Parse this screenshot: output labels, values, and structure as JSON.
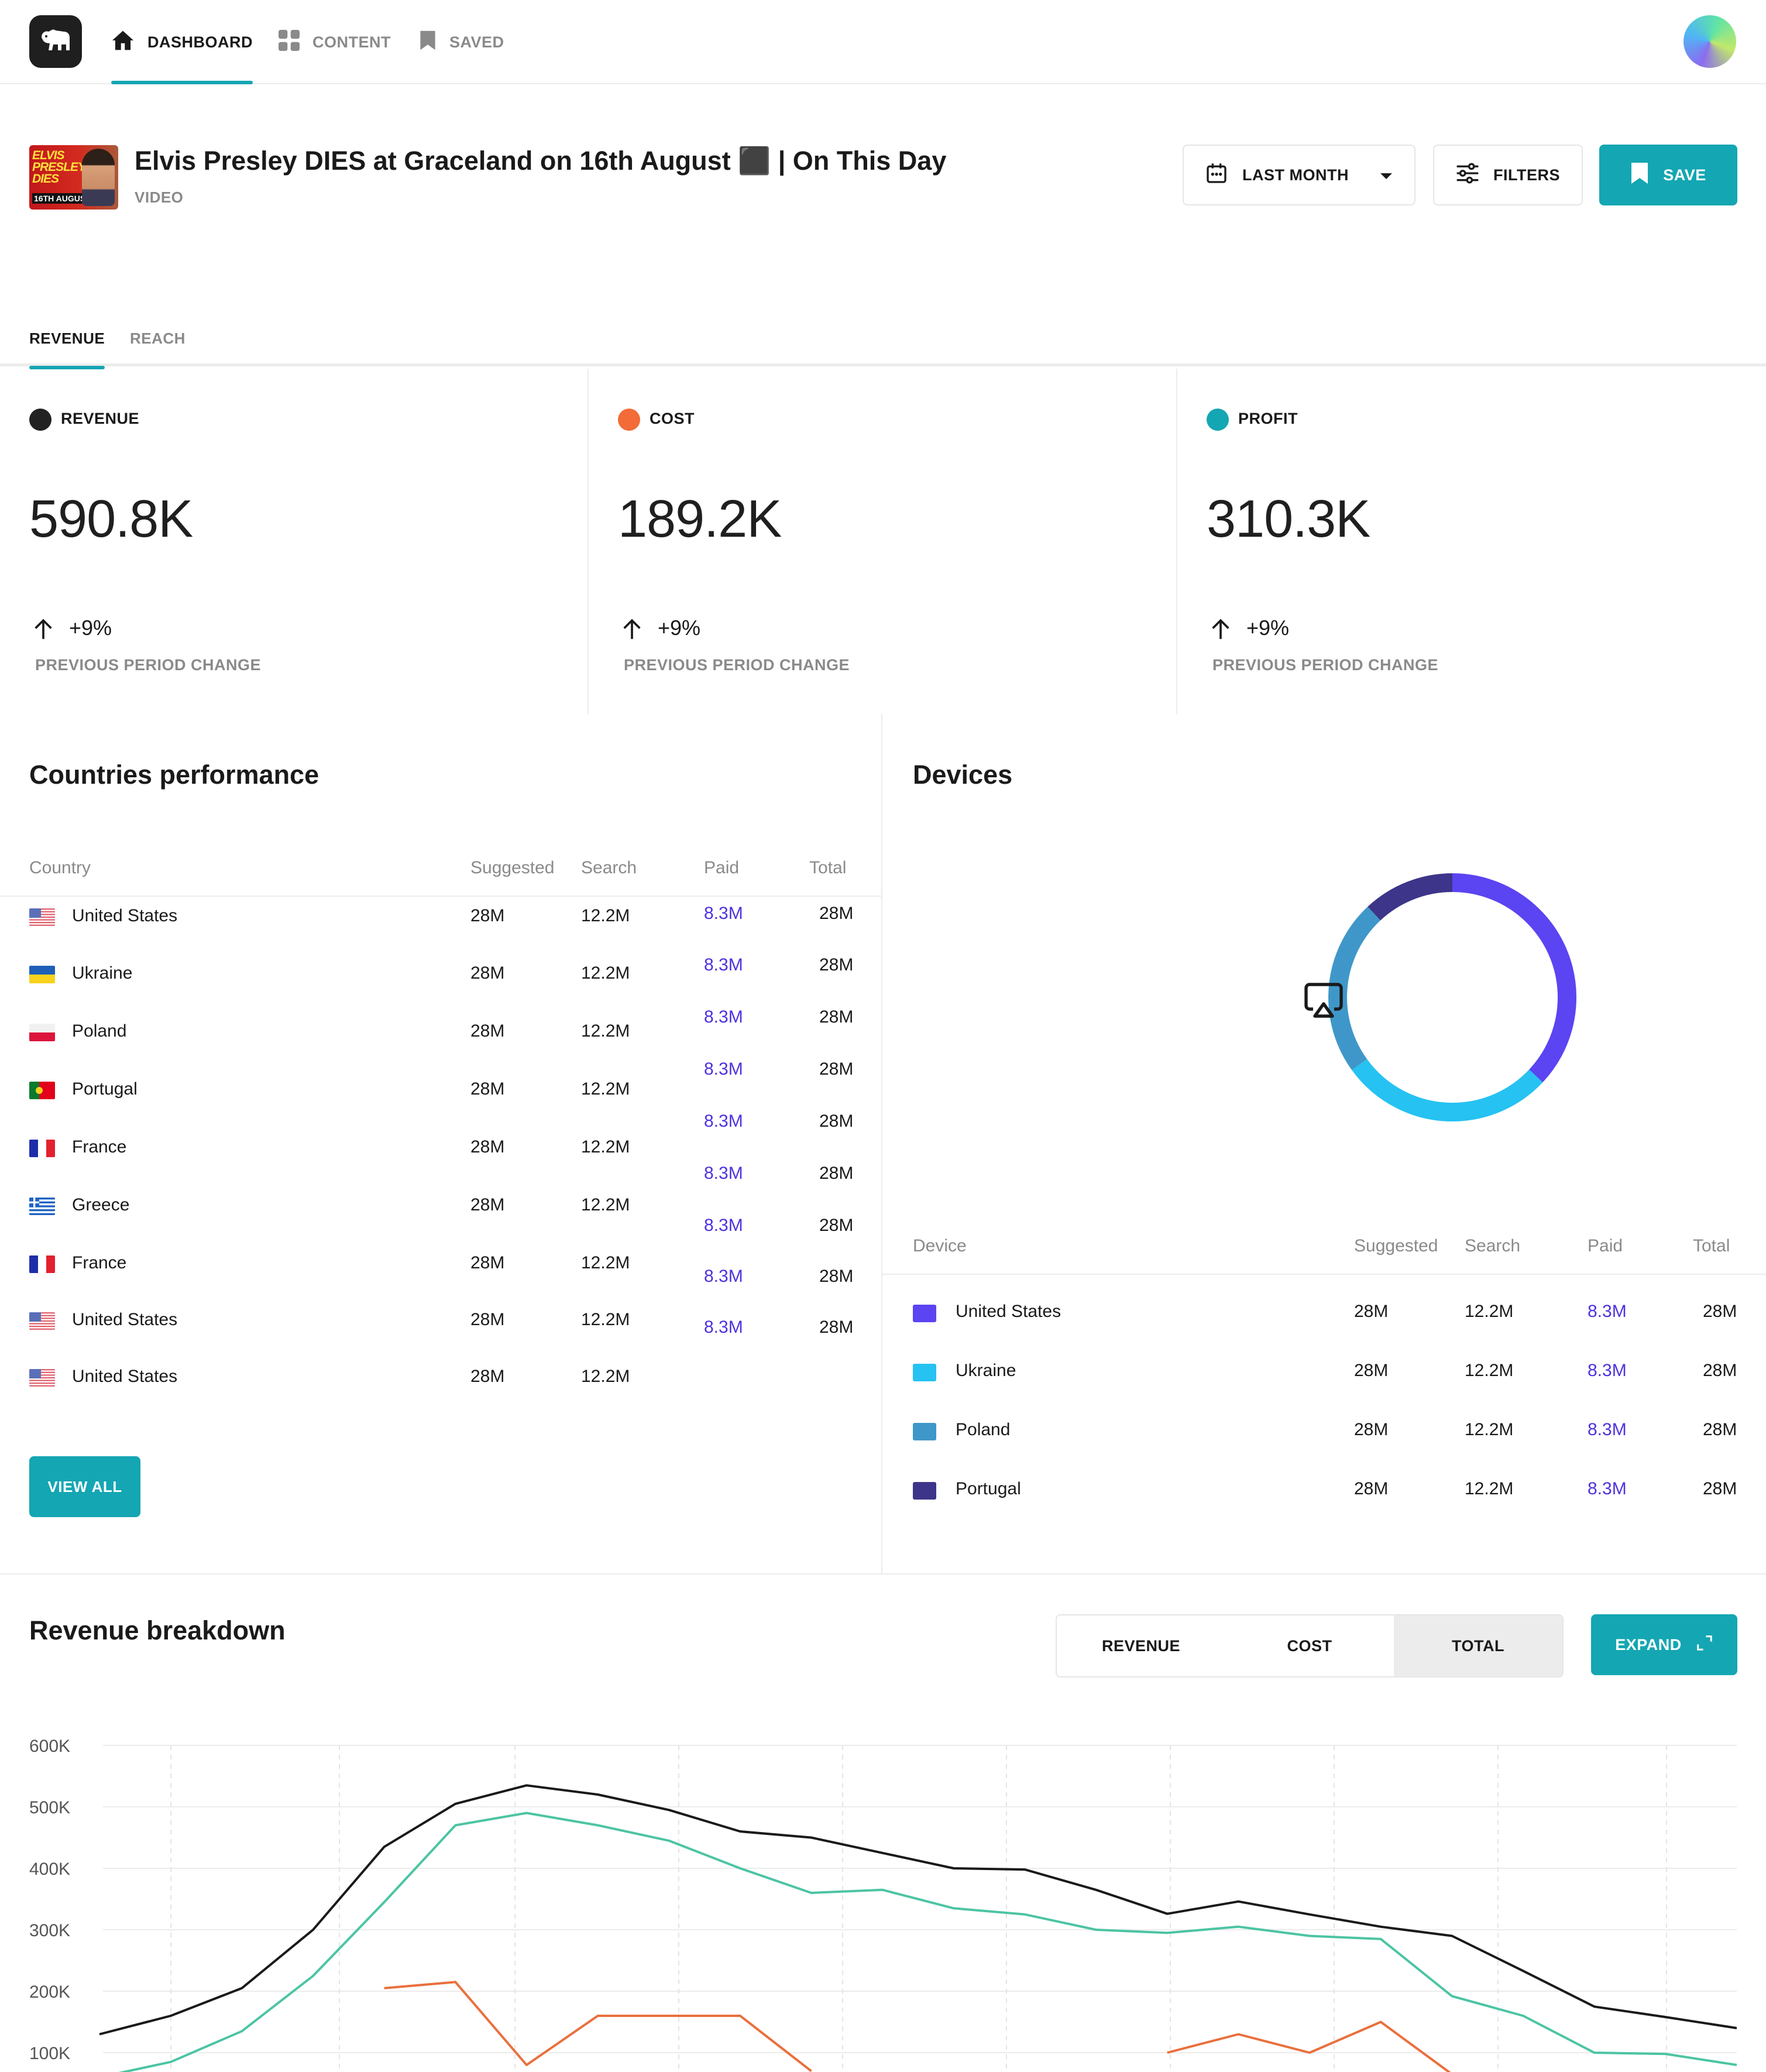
{
  "nav": {
    "items": [
      {
        "label": "DASHBOARD",
        "icon": "home-icon",
        "active": true
      },
      {
        "label": "CONTENT",
        "icon": "grid-icon",
        "active": false
      },
      {
        "label": "SAVED",
        "icon": "bookmark-icon",
        "active": false
      }
    ]
  },
  "header": {
    "thumbnail_text": "ELVIS PRESLEY DIES",
    "thumbnail_badge": "16TH AUGUST",
    "title": "Elvis Presley DIES at Graceland on 16th August ⬛ | On This Day",
    "subtitle": "VIDEO",
    "period_label": "LAST MONTH",
    "filters_label": "FILTERS",
    "save_label": "SAVE",
    "accent_color": "#14a6b3"
  },
  "tabs": [
    {
      "label": "REVENUE",
      "active": true
    },
    {
      "label": "REACH",
      "active": false
    }
  ],
  "stats": [
    {
      "label": "REVENUE",
      "color": "#222222",
      "value": "590.8K",
      "change": "+9%",
      "sub": "PREVIOUS PERIOD CHANGE"
    },
    {
      "label": "COST",
      "color": "#f26b38",
      "value": "189.2K",
      "change": "+9%",
      "sub": "PREVIOUS PERIOD CHANGE"
    },
    {
      "label": "PROFIT",
      "color": "#14a6b3",
      "value": "310.3K",
      "change": "+9%",
      "sub": "PREVIOUS PERIOD CHANGE"
    }
  ],
  "countries": {
    "title": "Countries performance",
    "headers": [
      "Country",
      "Suggested",
      "Search",
      "Paid",
      "Total"
    ],
    "rows": [
      {
        "flag": "us",
        "country": "United States",
        "suggested": "28M",
        "search": "12.2M",
        "paid": "8.3M",
        "total": "28M"
      },
      {
        "flag": "ua",
        "country": "Ukraine",
        "suggested": "28M",
        "search": "12.2M",
        "paid": "8.3M",
        "total": "28M"
      },
      {
        "flag": "pl",
        "country": "Poland",
        "suggested": "28M",
        "search": "12.2M",
        "paid": "8.3M",
        "total": "28M"
      },
      {
        "flag": "pt",
        "country": "Portugal",
        "suggested": "28M",
        "search": "12.2M",
        "paid": "8.3M",
        "total": "28M"
      },
      {
        "flag": "fr",
        "country": "France",
        "suggested": "28M",
        "search": "12.2M",
        "paid": "8.3M",
        "total": "28M"
      },
      {
        "flag": "gr",
        "country": "Greece",
        "suggested": "28M",
        "search": "12.2M",
        "paid": "8.3M",
        "total": "28M"
      },
      {
        "flag": "fr",
        "country": "France",
        "suggested": "28M",
        "search": "12.2M",
        "paid": "8.3M",
        "total": "28M"
      },
      {
        "flag": "us",
        "country": "United States",
        "suggested": "28M",
        "search": "12.2M",
        "paid": "8.3M",
        "total": "28M"
      },
      {
        "flag": "us",
        "country": "United States",
        "suggested": "28M",
        "search": "12.2M",
        "paid": "8.3M",
        "total": "28M"
      }
    ],
    "view_all_label": "VIEW ALL"
  },
  "devices": {
    "title": "Devices",
    "center_icon": "airplay-icon",
    "headers": [
      "Device",
      "Suggested",
      "Search",
      "Paid",
      "Total"
    ],
    "rows": [
      {
        "color": "#5b44f2",
        "device": "United States",
        "suggested": "28M",
        "search": "12.2M",
        "paid": "8.3M",
        "total": "28M"
      },
      {
        "color": "#25c2f2",
        "device": "Ukraine",
        "suggested": "28M",
        "search": "12.2M",
        "paid": "8.3M",
        "total": "28M"
      },
      {
        "color": "#3f97c9",
        "device": "Poland",
        "suggested": "28M",
        "search": "12.2M",
        "paid": "8.3M",
        "total": "28M"
      },
      {
        "color": "#3d3589",
        "device": "Portugal",
        "suggested": "28M",
        "search": "12.2M",
        "paid": "8.3M",
        "total": "28M"
      }
    ],
    "donut_fractions": [
      0.37,
      0.28,
      0.23,
      0.12
    ]
  },
  "breakdown": {
    "title": "Revenue breakdown",
    "segments": [
      {
        "label": "REVENUE",
        "active": false
      },
      {
        "label": "COST",
        "active": false
      },
      {
        "label": "TOTAL",
        "active": true
      }
    ],
    "expand_label": "EXPAND"
  },
  "chart_data": {
    "type": "line",
    "yticks": [
      "600K",
      "500K",
      "400K",
      "300K",
      "200K",
      "100K"
    ],
    "ylim": [
      100000,
      600000
    ],
    "grid": true,
    "series": [
      {
        "color": "#1a1a1a",
        "values": [
          130000,
          160000,
          205000,
          300000,
          435000,
          505000,
          535000,
          520000,
          495000,
          460000,
          450000,
          425000,
          400000,
          398000,
          365000,
          326000,
          346000,
          325000,
          305000,
          290000,
          233000,
          175000,
          158000,
          140000
        ]
      },
      {
        "color": "#4cc4a4",
        "values": [
          60000,
          85000,
          135000,
          225000,
          345000,
          470000,
          490000,
          470000,
          445000,
          400000,
          360000,
          365000,
          335000,
          325000,
          300000,
          295000,
          305000,
          290000,
          285000,
          192000,
          160000,
          100000,
          98000,
          80000
        ]
      },
      {
        "color": "#e9703d",
        "values": [
          null,
          null,
          null,
          null,
          205000,
          215000,
          80000,
          160000,
          160000,
          160000,
          70000,
          null,
          null,
          null,
          null,
          100000,
          130000,
          100000,
          150000,
          65000,
          null,
          null,
          null,
          null
        ]
      }
    ]
  }
}
